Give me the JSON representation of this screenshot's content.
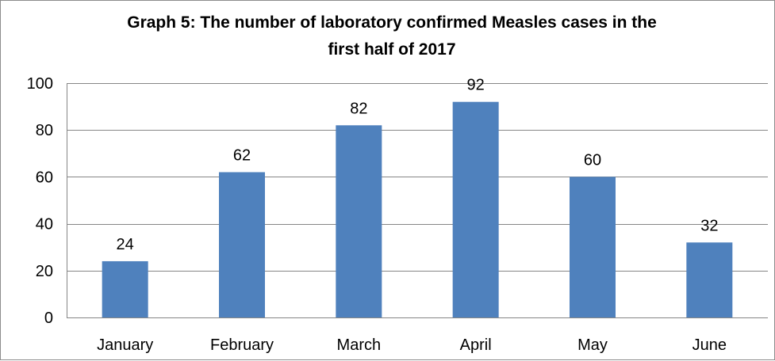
{
  "chart_data": {
    "type": "bar",
    "title_lines": [
      "Graph 5: The number of laboratory confirmed Measles cases in the",
      "first half of 2017"
    ],
    "categories": [
      "January",
      "February",
      "March",
      "April",
      "May",
      "June"
    ],
    "values": [
      24,
      62,
      82,
      92,
      60,
      32
    ],
    "data_labels": [
      "24",
      "62",
      "82",
      "92",
      "60",
      "32"
    ],
    "xlabel": "",
    "ylabel": "",
    "ylim": [
      0,
      100
    ],
    "yticks": [
      0,
      20,
      40,
      60,
      80,
      100
    ],
    "grid": true,
    "legend": "none",
    "bar_color": "#4f81bd"
  }
}
